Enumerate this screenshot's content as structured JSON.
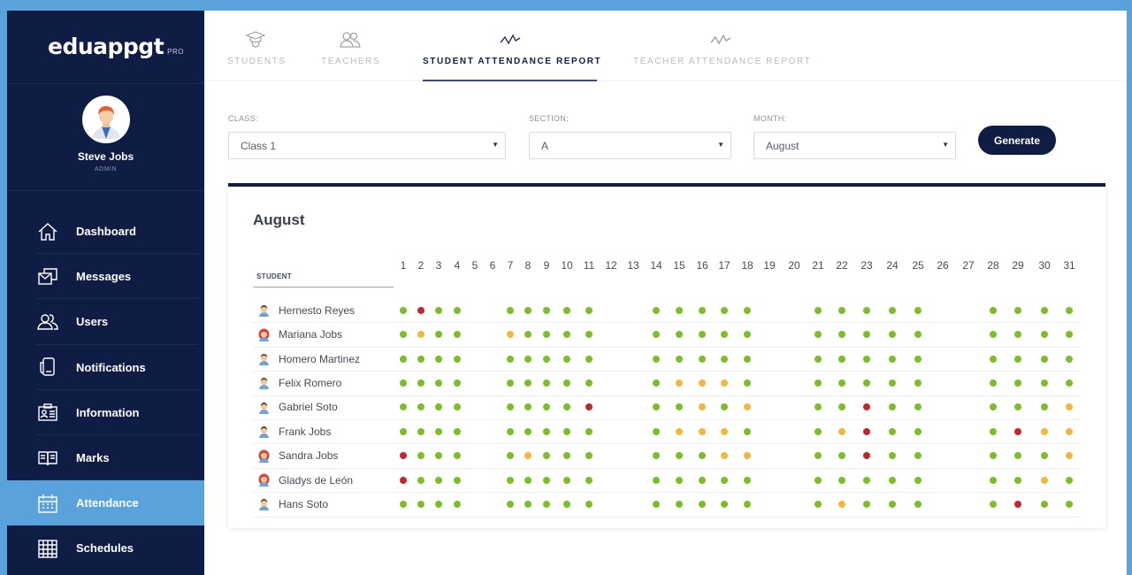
{
  "app": {
    "logo": "eduappgt",
    "logo_suffix": "PRO",
    "colors": {
      "sidebar": "#0f1d45",
      "accent": "#5aa2dc",
      "present": "#7ac025",
      "late": "#f5b73a",
      "absent": "#c4262e"
    }
  },
  "user": {
    "name": "Steve Jobs",
    "role": "ADMIN"
  },
  "sidebar": {
    "items": [
      {
        "label": "Dashboard",
        "icon": "home-icon"
      },
      {
        "label": "Messages",
        "icon": "messages-icon"
      },
      {
        "label": "Users",
        "icon": "users-icon"
      },
      {
        "label": "Notifications",
        "icon": "notifications-icon"
      },
      {
        "label": "Information",
        "icon": "id-card-icon"
      },
      {
        "label": "Marks",
        "icon": "book-icon"
      },
      {
        "label": "Attendance",
        "icon": "calendar-icon",
        "active": true
      },
      {
        "label": "Schedules",
        "icon": "schedule-icon"
      }
    ]
  },
  "tabs": [
    {
      "label": "STUDENTS",
      "icon": "graduation-cap-icon"
    },
    {
      "label": "TEACHERS",
      "icon": "teachers-icon"
    },
    {
      "label": "STUDENT ATTENDANCE REPORT",
      "icon": "report-chart-icon",
      "active": true
    },
    {
      "label": "TEACHER ATTENDANCE REPORT",
      "icon": "report-chart-icon"
    }
  ],
  "filters": {
    "class_label": "CLASS:",
    "class_value": "Class 1",
    "section_label": "SECTION:",
    "section_value": "A",
    "month_label": "MONTH:",
    "month_value": "August",
    "generate_label": "Generate"
  },
  "report": {
    "title": "August",
    "student_header": "STUDENT",
    "days": [
      1,
      2,
      3,
      4,
      5,
      6,
      7,
      8,
      9,
      10,
      11,
      12,
      13,
      14,
      15,
      16,
      17,
      18,
      19,
      20,
      21,
      22,
      23,
      24,
      25,
      26,
      27,
      28,
      29,
      30,
      31
    ],
    "legend_codes": {
      "P": "present",
      "L": "late",
      "A": "absent",
      "-": "no class"
    },
    "students": [
      {
        "name": "Hernesto Reyes",
        "avatar": "boy-avatar-icon",
        "attendance": "PAPP--PPPPP--PPPPP--PPPPP--PPPP"
      },
      {
        "name": "Mariana Jobs",
        "avatar": "girl-avatar-icon",
        "attendance": "PLPP--LPPPP--PPPPP--PPPPP--PPPP"
      },
      {
        "name": "Homero Martinez",
        "avatar": "boy-avatar-icon",
        "attendance": "PPPP--PPPPP--PPPPP--PPPPP--PPPP"
      },
      {
        "name": "Felix Romero",
        "avatar": "boy-avatar-icon",
        "attendance": "PPPP--PPPPP--PLLLP--PPPPP--PPPP"
      },
      {
        "name": "Gabriel Soto",
        "avatar": "boy-avatar-icon",
        "attendance": "PPPP--PPPPA--PPLPL--PPAPP--PPPL"
      },
      {
        "name": "Frank Jobs",
        "avatar": "boy-avatar-icon",
        "attendance": "PPPP--PPPPP--PLLLP--PLAPP--PALL"
      },
      {
        "name": "Sandra Jobs",
        "avatar": "girl-avatar-icon",
        "attendance": "APPP--PLPPP--PPPLL--PPAPP--PPPL"
      },
      {
        "name": "Gladys de León",
        "avatar": "girl-avatar-icon",
        "attendance": "APPP--PPPPP--PPPPP--PPPPP--PPLP"
      },
      {
        "name": "Hans Soto",
        "avatar": "boy-avatar-icon",
        "attendance": "PPPP--PPPPP--PPPPP--PLPPP--PAPP"
      }
    ]
  }
}
